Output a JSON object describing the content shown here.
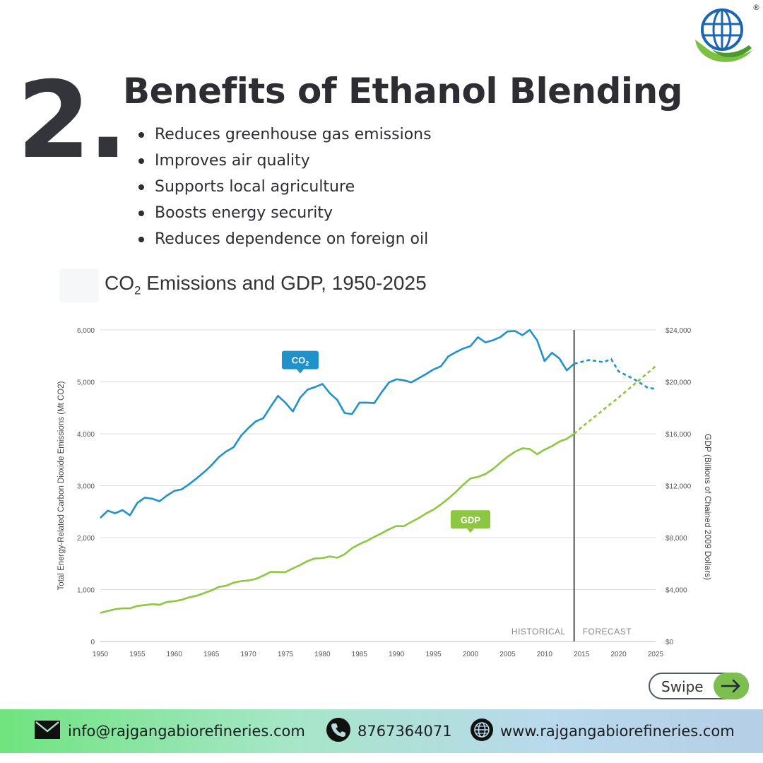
{
  "header": {
    "number": "2.",
    "title": "Benefits of Ethanol Blending",
    "bullets": [
      "Reduces greenhouse gas emissions",
      "Improves air quality",
      "Supports local agriculture",
      "Boosts energy security",
      "Reduces dependence on foreign oil"
    ]
  },
  "logo": {
    "icon": "globe-logo-icon",
    "registered": "®"
  },
  "chart_title": {
    "main": "CO",
    "sub": "2",
    "rest": " Emissions and GDP, 1950-2025"
  },
  "chart_data": {
    "type": "line",
    "title": "CO2 Emissions and GDP, 1950-2025",
    "ylabel_left": "Total Energy-Related Carbon Dioxide Emissions (Mt CO2)",
    "ylabel_right": "GDP (Billions of Chained 2009 Dollars)",
    "xlim": [
      1950,
      2025
    ],
    "ylim_left": [
      0,
      6000
    ],
    "ylim_right": [
      0,
      24000
    ],
    "x_ticks": [
      1950,
      1955,
      1960,
      1965,
      1970,
      1975,
      1980,
      1985,
      1990,
      1995,
      2000,
      2005,
      2010,
      2015,
      2020,
      2025
    ],
    "y_ticks_left": [
      {
        "value": 0,
        "label": "0"
      },
      {
        "value": 1000,
        "label": "1,000"
      },
      {
        "value": 2000,
        "label": "2,000"
      },
      {
        "value": 3000,
        "label": "3,000"
      },
      {
        "value": 4000,
        "label": "4,000"
      },
      {
        "value": 5000,
        "label": "5,000"
      },
      {
        "value": 6000,
        "label": "6,000"
      }
    ],
    "y_ticks_right": [
      {
        "value": 0,
        "label": "$0"
      },
      {
        "value": 4000,
        "label": "$4,000"
      },
      {
        "value": 8000,
        "label": "$8,000"
      },
      {
        "value": 12000,
        "label": "$12,000"
      },
      {
        "value": 16000,
        "label": "$16,000"
      },
      {
        "value": 20000,
        "label": "$20,000"
      },
      {
        "value": 24000,
        "label": "$24,000"
      }
    ],
    "grid": true,
    "divider": {
      "x": 2014,
      "left_label": "HISTORICAL",
      "right_label": "FORECAST"
    },
    "series": [
      {
        "name": "CO",
        "name_sub": "2",
        "axis": "left",
        "color": "#1f93c9",
        "label_at": [
          1977,
          5420
        ],
        "historical": {
          "x": [
            1950,
            1951,
            1952,
            1953,
            1954,
            1955,
            1956,
            1957,
            1958,
            1959,
            1960,
            1961,
            1962,
            1963,
            1964,
            1965,
            1966,
            1967,
            1968,
            1969,
            1970,
            1971,
            1972,
            1973,
            1974,
            1975,
            1976,
            1977,
            1978,
            1979,
            1980,
            1981,
            1982,
            1983,
            1984,
            1985,
            1986,
            1987,
            1988,
            1989,
            1990,
            1991,
            1992,
            1993,
            1994,
            1995,
            1996,
            1997,
            1998,
            1999,
            2000,
            2001,
            2002,
            2003,
            2004,
            2005,
            2006,
            2007,
            2008,
            2009,
            2010,
            2011,
            2012,
            2013,
            2014
          ],
          "y": [
            2380,
            2520,
            2470,
            2530,
            2430,
            2670,
            2770,
            2750,
            2700,
            2810,
            2900,
            2930,
            3030,
            3140,
            3260,
            3390,
            3550,
            3660,
            3740,
            3960,
            4110,
            4240,
            4300,
            4520,
            4730,
            4600,
            4430,
            4700,
            4850,
            4900,
            4960,
            4780,
            4650,
            4400,
            4380,
            4600,
            4600,
            4590,
            4800,
            4990,
            5050,
            5030,
            4990,
            5070,
            5150,
            5240,
            5300,
            5490,
            5570,
            5640,
            5690,
            5860,
            5760,
            5800,
            5860,
            5970,
            5980,
            5900,
            6000,
            5800,
            5400,
            5560,
            5450,
            5220,
            5350
          ]
        },
        "forecast": {
          "x": [
            2014,
            2016,
            2018,
            2019,
            2020,
            2022,
            2024,
            2025
          ],
          "y": [
            5350,
            5420,
            5380,
            5440,
            5200,
            5060,
            4880,
            4870
          ]
        }
      },
      {
        "name": "GDP",
        "axis": "right",
        "color": "#8dc63f",
        "label_at": [
          2000,
          9400
        ],
        "historical": {
          "x": [
            1950,
            1951,
            1952,
            1953,
            1954,
            1955,
            1956,
            1957,
            1958,
            1959,
            1960,
            1961,
            1962,
            1963,
            1964,
            1965,
            1966,
            1967,
            1968,
            1969,
            1970,
            1971,
            1972,
            1973,
            1974,
            1975,
            1976,
            1977,
            1978,
            1979,
            1980,
            1981,
            1982,
            1983,
            1984,
            1985,
            1986,
            1987,
            1988,
            1989,
            1990,
            1991,
            1992,
            1993,
            1994,
            1995,
            1996,
            1997,
            1998,
            1999,
            2000,
            2001,
            2002,
            2003,
            2004,
            2005,
            2006,
            2007,
            2008,
            2009,
            2010,
            2011,
            2012,
            2013,
            2014
          ],
          "y": [
            2200,
            2350,
            2480,
            2560,
            2550,
            2740,
            2800,
            2880,
            2830,
            3040,
            3100,
            3210,
            3400,
            3520,
            3720,
            3930,
            4200,
            4300,
            4530,
            4650,
            4700,
            4820,
            5070,
            5360,
            5350,
            5340,
            5630,
            5890,
            6200,
            6400,
            6420,
            6550,
            6450,
            6720,
            7190,
            7500,
            7750,
            8060,
            8340,
            8640,
            8900,
            8880,
            9200,
            9500,
            9860,
            10160,
            10560,
            11010,
            11510,
            12070,
            12560,
            12680,
            12900,
            13270,
            13760,
            14230,
            14610,
            14880,
            14830,
            14420,
            14780,
            15050,
            15400,
            15610,
            16000
          ]
        },
        "forecast": {
          "x": [
            2014,
            2015,
            2020,
            2025
          ],
          "y": [
            16000,
            16500,
            18800,
            21200
          ]
        }
      }
    ]
  },
  "swipe": {
    "label": "Swipe",
    "icon": "arrow-right-icon"
  },
  "footer": {
    "email": "info@rajgangabiorefineries.com",
    "phone": "8767364071",
    "website": "www.rajgangabiorefineries.com",
    "icons": [
      "envelope-icon",
      "phone-icon",
      "globe-icon"
    ]
  }
}
